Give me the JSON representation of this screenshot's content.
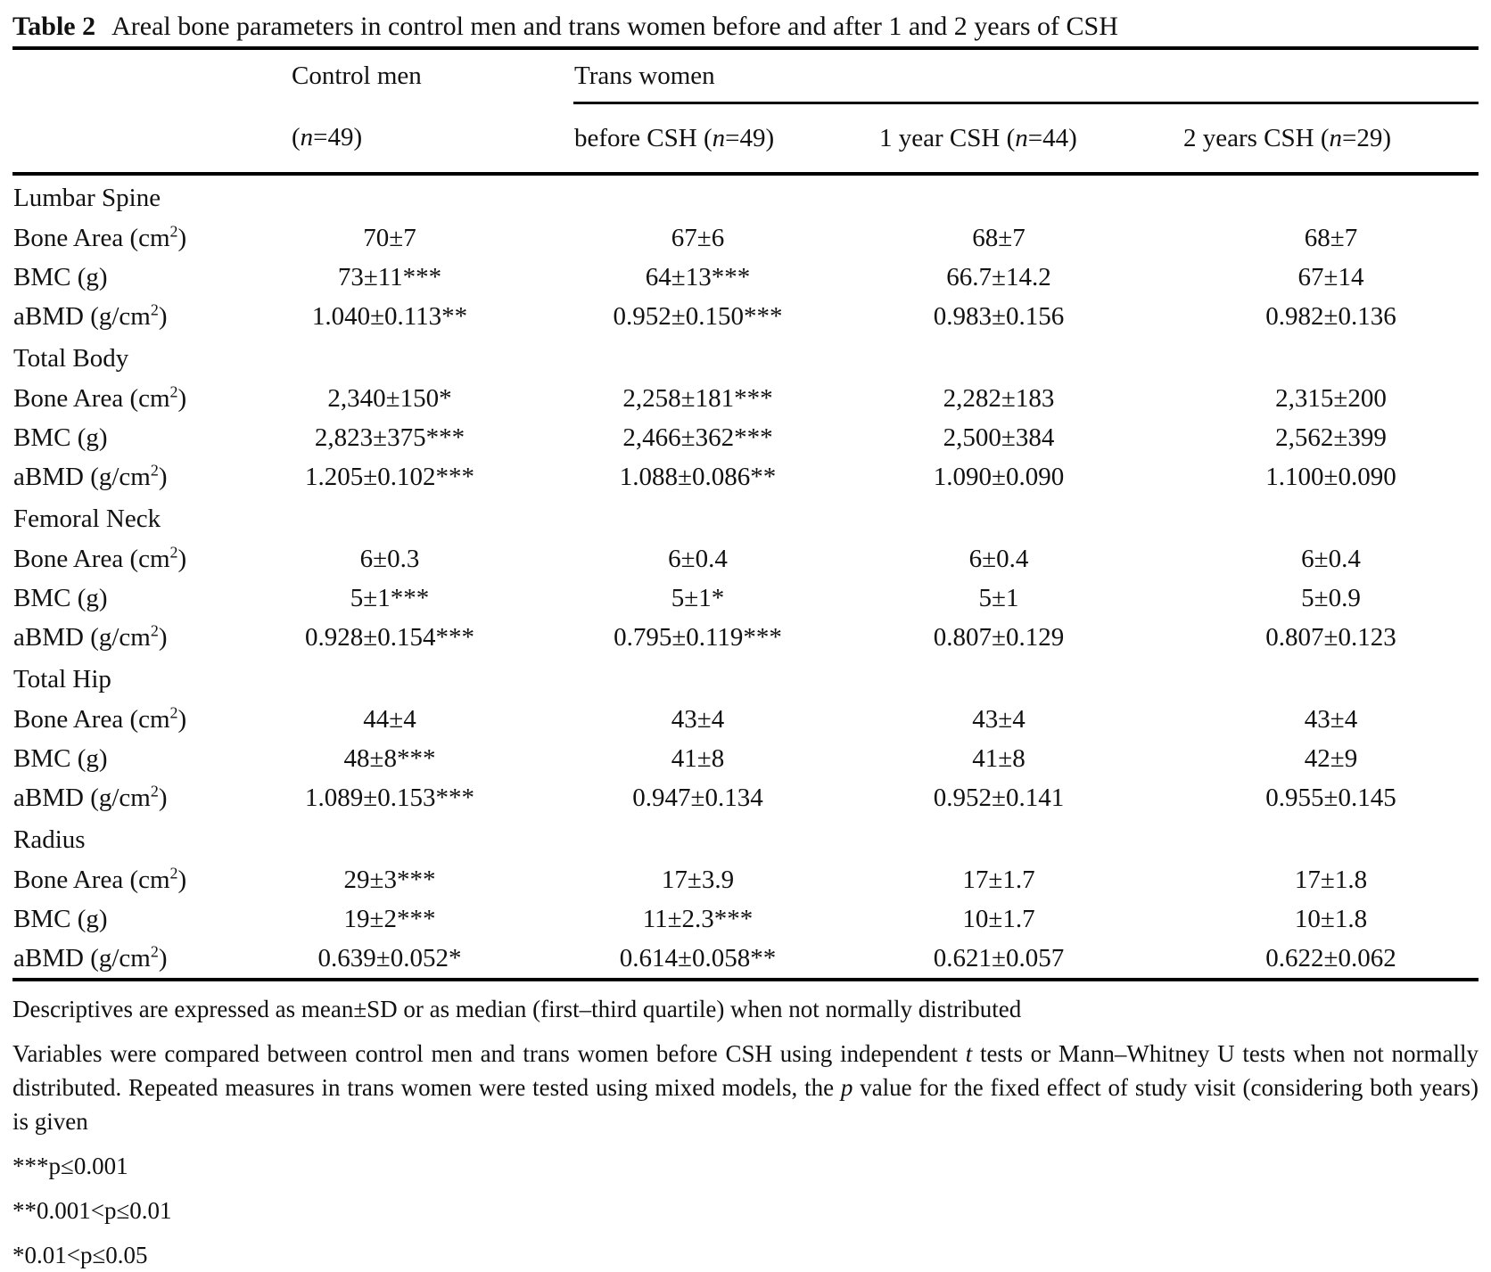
{
  "title": {
    "label": "Table 2",
    "caption": "Areal bone parameters in control men and trans women before and after 1 and 2 years of CSH"
  },
  "header": {
    "control_group": "Control men",
    "trans_group": "Trans women",
    "subheaders": [
      {
        "pre": "(",
        "n": "n",
        "post": "=49)"
      },
      {
        "pre": "before CSH (",
        "n": "n",
        "post": "=49)"
      },
      {
        "pre": "1 year CSH (",
        "n": "n",
        "post": "=44)"
      },
      {
        "pre": "2 years CSH (",
        "n": "n",
        "post": "=29)"
      }
    ]
  },
  "table": {
    "sections": [
      {
        "name": "Lumbar Spine",
        "rows": [
          {
            "label": "Bone Area (cm²)",
            "values": [
              "70±7",
              "67±6",
              "68±7",
              "68±7"
            ]
          },
          {
            "label": "BMC (g)",
            "values": [
              "73±11***",
              "64±13***",
              "66.7±14.2",
              "67±14"
            ]
          },
          {
            "label": "aBMD (g/cm²)",
            "values": [
              "1.040±0.113**",
              "0.952±0.150***",
              "0.983±0.156",
              "0.982±0.136"
            ]
          }
        ]
      },
      {
        "name": "Total Body",
        "rows": [
          {
            "label": "Bone Area (cm²)",
            "values": [
              "2,340±150*",
              "2,258±181***",
              "2,282±183",
              "2,315±200"
            ]
          },
          {
            "label": "BMC (g)",
            "values": [
              "2,823±375***",
              "2,466±362***",
              "2,500±384",
              "2,562±399"
            ]
          },
          {
            "label": "aBMD (g/cm²)",
            "values": [
              "1.205±0.102***",
              "1.088±0.086**",
              "1.090±0.090",
              "1.100±0.090"
            ]
          }
        ]
      },
      {
        "name": "Femoral Neck",
        "rows": [
          {
            "label": "Bone Area (cm²)",
            "values": [
              "6±0.3",
              "6±0.4",
              "6±0.4",
              "6±0.4"
            ]
          },
          {
            "label": "BMC (g)",
            "values": [
              "5±1***",
              "5±1*",
              "5±1",
              "5±0.9"
            ]
          },
          {
            "label": "aBMD (g/cm²)",
            "values": [
              "0.928±0.154***",
              "0.795±0.119***",
              "0.807±0.129",
              "0.807±0.123"
            ]
          }
        ]
      },
      {
        "name": "Total Hip",
        "rows": [
          {
            "label": "Bone Area (cm²)",
            "values": [
              "44±4",
              "43±4",
              "43±4",
              "43±4"
            ]
          },
          {
            "label": "BMC (g)",
            "values": [
              "48±8***",
              "41±8",
              "41±8",
              "42±9"
            ]
          },
          {
            "label": "aBMD (g/cm²)",
            "values": [
              "1.089±0.153***",
              "0.947±0.134",
              "0.952±0.141",
              "0.955±0.145"
            ]
          }
        ]
      },
      {
        "name": "Radius",
        "rows": [
          {
            "label": "Bone Area (cm²)",
            "values": [
              "29±3***",
              "17±3.9",
              "17±1.7",
              "17±1.8"
            ]
          },
          {
            "label": "BMC (g)",
            "values": [
              "19±2***",
              "11±2.3***",
              "10±1.7",
              "10±1.8"
            ]
          },
          {
            "label": "aBMD (g/cm²)",
            "values": [
              "0.639±0.052*",
              "0.614±0.058**",
              "0.621±0.057",
              "0.622±0.062"
            ]
          }
        ]
      }
    ]
  },
  "footnotes": {
    "descriptives": "Descriptives are expressed as mean±SD or as median (first–third quartile) when not normally distributed",
    "methods": {
      "p1": "Variables were compared between control men and trans women before CSH using independent ",
      "it1": "t",
      "p2": " tests or Mann–Whitney U tests when not normally distributed. Repeated measures in trans women were tested using mixed models, the ",
      "it2": "p",
      "p3": " value for the fixed effect of study visit (considering both years) is given"
    },
    "sig": [
      "***p≤0.001",
      "**0.001<p≤0.01",
      "*0.01<p≤0.05"
    ]
  }
}
